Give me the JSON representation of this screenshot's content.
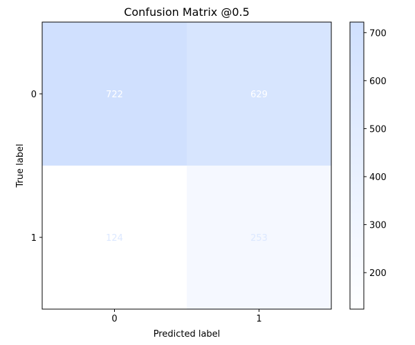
{
  "chart_data": {
    "type": "heatmap",
    "title": "Confusion Matrix @0.5",
    "xlabel": "Predicted label",
    "ylabel": "True label",
    "x_categories": [
      "0",
      "1"
    ],
    "y_categories": [
      "0",
      "1"
    ],
    "values": [
      [
        722,
        629
      ],
      [
        124,
        253
      ]
    ],
    "colorbar": {
      "ticks": [
        "200",
        "300",
        "400",
        "500",
        "600",
        "700"
      ],
      "range": [
        124,
        722
      ],
      "low_color": "#ffffff",
      "high_color": "#d0e0fe"
    },
    "value_label_colors": {
      "on_dark": "#ffffff",
      "on_light": "#dce8ff"
    },
    "grid": false
  }
}
